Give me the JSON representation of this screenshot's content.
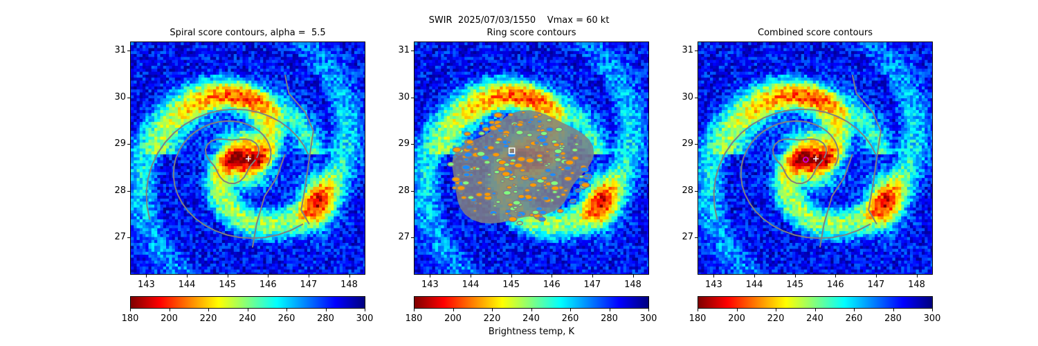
{
  "figure": {
    "suptitle": "SWIR  2025/07/03/1550    Vmax = 60 kt",
    "colorbar_label": "Brightness temp, K"
  },
  "colors": {
    "colormap": [
      "#7f0000",
      "#ff0000",
      "#ff8000",
      "#ffff00",
      "#80ff80",
      "#00ffff",
      "#0080ff",
      "#0000ff",
      "#00007f"
    ],
    "contour": "#808080",
    "marker_cross": "#ffffff",
    "marker_square": "#ffffff",
    "marker_circle": "#cc00cc"
  },
  "chart_data": [
    {
      "type": "heatmap",
      "title": "Spiral score contours, alpha =  5.5",
      "xlim": [
        142.6,
        148.4
      ],
      "ylim": [
        26.2,
        31.2
      ],
      "xticks": [
        143,
        144,
        145,
        146,
        147,
        148
      ],
      "yticks": [
        27,
        28,
        29,
        30,
        31
      ],
      "colorbar": {
        "range": [
          180,
          300
        ],
        "ticks": [
          180,
          200,
          220,
          240,
          260,
          280,
          300
        ]
      },
      "markers": [
        {
          "shape": "cross",
          "x": 145.5,
          "y": 28.7
        }
      ],
      "contours": "spiral"
    },
    {
      "type": "heatmap",
      "title": "Ring score contours",
      "xlim": [
        142.6,
        148.4
      ],
      "ylim": [
        26.2,
        31.2
      ],
      "xticks": [
        143,
        144,
        145,
        146,
        147,
        148
      ],
      "yticks": [
        27,
        28,
        29,
        30,
        31
      ],
      "colorbar": {
        "range": [
          180,
          300
        ],
        "ticks": [
          180,
          200,
          220,
          240,
          260,
          280,
          300
        ]
      },
      "markers": [
        {
          "shape": "square",
          "x": 145.0,
          "y": 28.87
        }
      ],
      "contours": "ring"
    },
    {
      "type": "heatmap",
      "title": "Combined score contours",
      "xlim": [
        142.6,
        148.4
      ],
      "ylim": [
        26.2,
        31.2
      ],
      "xticks": [
        143,
        144,
        145,
        146,
        147,
        148
      ],
      "yticks": [
        27,
        28,
        29,
        30,
        31
      ],
      "colorbar": {
        "range": [
          180,
          300
        ],
        "ticks": [
          180,
          200,
          220,
          240,
          260,
          280,
          300
        ]
      },
      "markers": [
        {
          "shape": "circle",
          "x": 145.25,
          "y": 28.68
        },
        {
          "shape": "cross",
          "x": 145.5,
          "y": 28.7
        }
      ],
      "contours": "spiral"
    }
  ]
}
